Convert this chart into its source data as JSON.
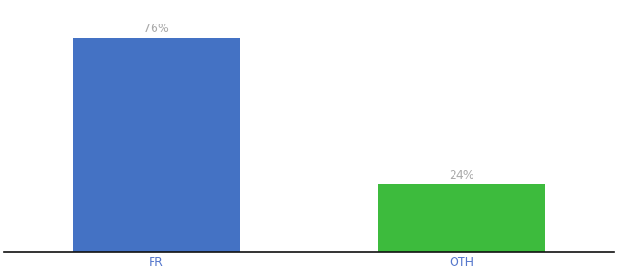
{
  "categories": [
    "FR",
    "OTH"
  ],
  "values": [
    76,
    24
  ],
  "bar_colors": [
    "#4472c4",
    "#3dbb3d"
  ],
  "label_color": "#aaaaaa",
  "tick_label_color": "#5577cc",
  "bar_width": 0.55,
  "xlim": [
    -0.5,
    1.5
  ],
  "ylim": [
    0,
    88
  ],
  "background_color": "#ffffff",
  "tick_label_fontsize": 9,
  "value_label_fontsize": 9
}
